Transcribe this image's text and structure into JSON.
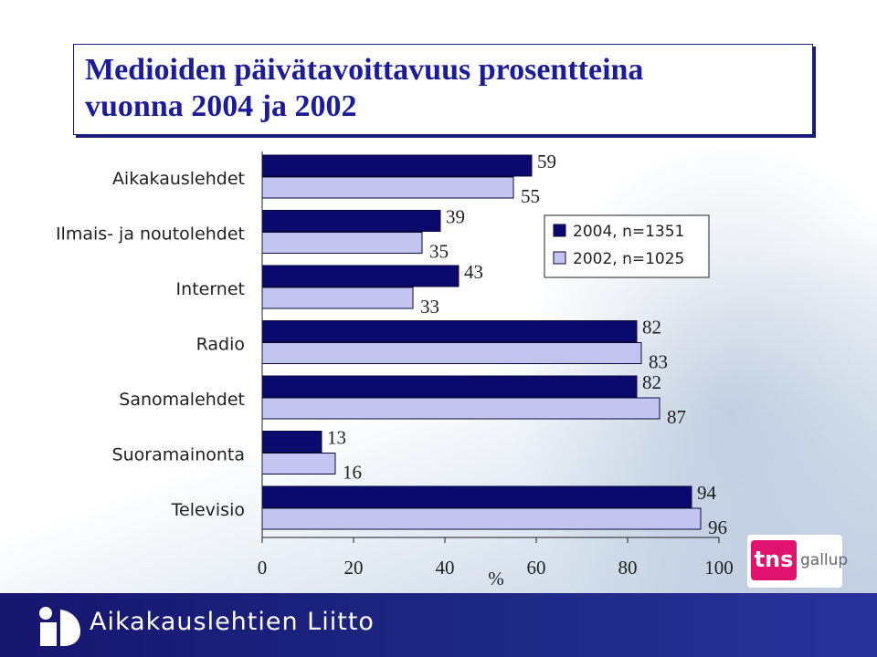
{
  "title_line1": "Medioiden päivätavoittavuus prosentteina",
  "title_line2": "vuonna 2004 ja 2002",
  "colors": {
    "series_2004": "#0a0a6e",
    "series_2002": "#c4c4f0",
    "title": "#1c1c9a",
    "footer": "#16166e"
  },
  "chart_data": {
    "type": "bar",
    "orientation": "horizontal",
    "categories": [
      "Aikakauslehdet",
      "Ilmais- ja noutolehdet",
      "Internet",
      "Radio",
      "Sanomalehdet",
      "Suoramainonta",
      "Televisio"
    ],
    "series": [
      {
        "name": "2004, n=1351",
        "values": [
          59,
          39,
          43,
          82,
          82,
          13,
          94
        ]
      },
      {
        "name": "2002, n=1025",
        "values": [
          55,
          35,
          33,
          83,
          87,
          16,
          96
        ]
      }
    ],
    "xlim": [
      0,
      100
    ],
    "xticks": [
      0,
      20,
      40,
      60,
      80,
      100
    ],
    "xlabel": "%",
    "legend_position": "right"
  },
  "footer": {
    "org_name": "Aikakauslehtien Liitto",
    "org_icon": "aikakauslehtien-liitto-logo-icon"
  },
  "partner_logo": {
    "mark": "tns",
    "text": "gallup"
  }
}
